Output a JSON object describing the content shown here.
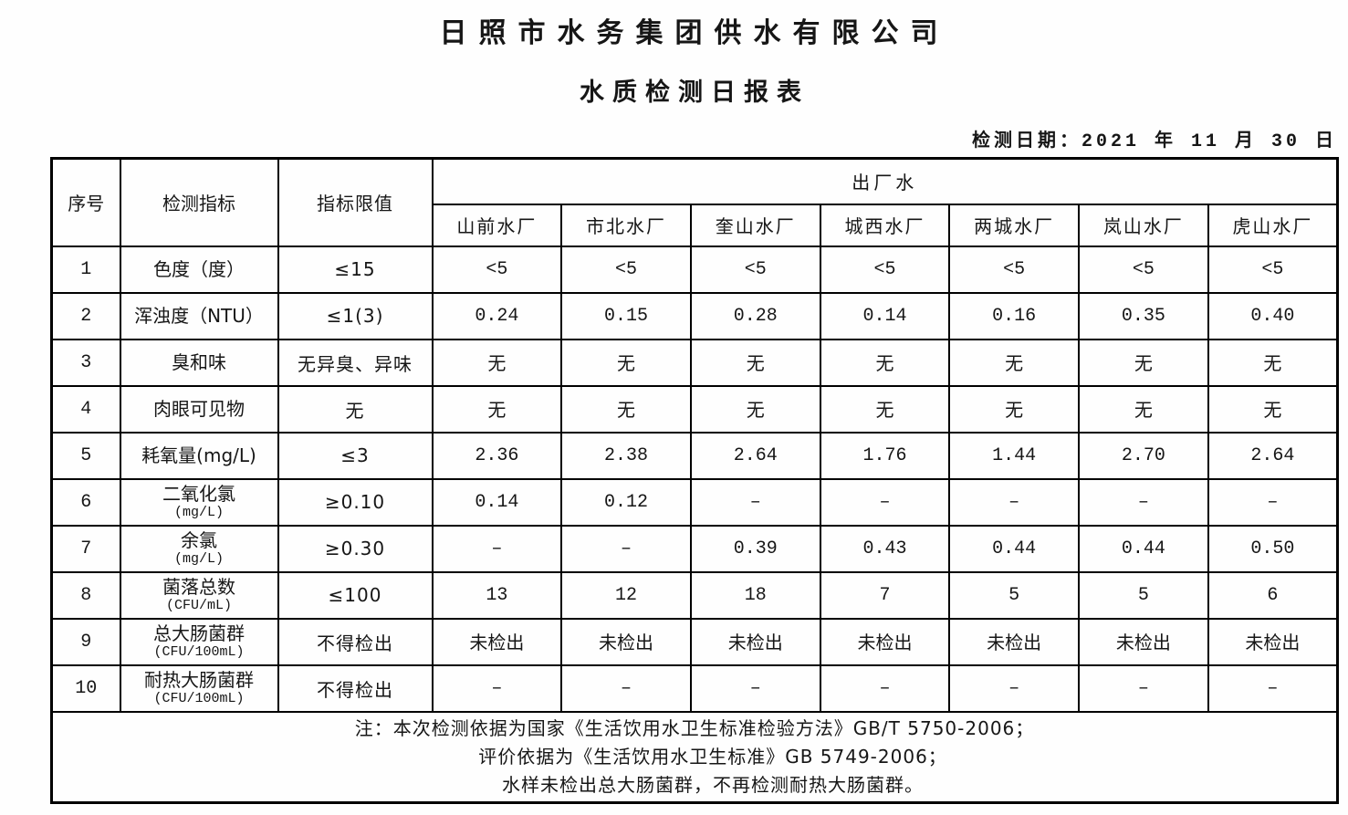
{
  "page": {
    "title": "日照市水务集团供水有限公司",
    "subtitle": "水质检测日报表",
    "date_label": "检测日期：",
    "date_value": "2021 年 11 月 30 日"
  },
  "table": {
    "header": {
      "col_no": "序号",
      "col_indicator": "检测指标",
      "col_limit": "指标限值",
      "group": "出厂水",
      "plants": [
        "山前水厂",
        "市北水厂",
        "奎山水厂",
        "城西水厂",
        "两城水厂",
        "岚山水厂",
        "虎山水厂"
      ]
    },
    "rows": [
      {
        "no": "1",
        "indicator": "色度（度）",
        "unit": "",
        "limit": "≤15",
        "values": [
          "<5",
          "<5",
          "<5",
          "<5",
          "<5",
          "<5",
          "<5"
        ]
      },
      {
        "no": "2",
        "indicator": "浑浊度（NTU）",
        "unit": "",
        "limit": "≤1(3)",
        "values": [
          "0.24",
          "0.15",
          "0.28",
          "0.14",
          "0.16",
          "0.35",
          "0.40"
        ]
      },
      {
        "no": "3",
        "indicator": "臭和味",
        "unit": "",
        "limit": "无异臭、异味",
        "values": [
          "无",
          "无",
          "无",
          "无",
          "无",
          "无",
          "无"
        ]
      },
      {
        "no": "4",
        "indicator": "肉眼可见物",
        "unit": "",
        "limit": "无",
        "values": [
          "无",
          "无",
          "无",
          "无",
          "无",
          "无",
          "无"
        ]
      },
      {
        "no": "5",
        "indicator": "耗氧量(mg/L)",
        "unit": "",
        "limit": "≤3",
        "values": [
          "2.36",
          "2.38",
          "2.64",
          "1.76",
          "1.44",
          "2.70",
          "2.64"
        ]
      },
      {
        "no": "6",
        "indicator": "二氧化氯",
        "unit": "(mg/L)",
        "limit": "≥0.10",
        "values": [
          "0.14",
          "0.12",
          "–",
          "–",
          "–",
          "–",
          "–"
        ]
      },
      {
        "no": "7",
        "indicator": "余氯",
        "unit": "(mg/L)",
        "limit": "≥0.30",
        "values": [
          "–",
          "–",
          "0.39",
          "0.43",
          "0.44",
          "0.44",
          "0.50"
        ]
      },
      {
        "no": "8",
        "indicator": "菌落总数",
        "unit": "(CFU/mL)",
        "limit": "≤100",
        "values": [
          "13",
          "12",
          "18",
          "7",
          "5",
          "5",
          "6"
        ]
      },
      {
        "no": "9",
        "indicator": "总大肠菌群",
        "unit": "(CFU/100mL)",
        "limit": "不得检出",
        "values": [
          "未检出",
          "未检出",
          "未检出",
          "未检出",
          "未检出",
          "未检出",
          "未检出"
        ]
      },
      {
        "no": "10",
        "indicator": "耐热大肠菌群",
        "unit": "(CFU/100mL)",
        "limit": "不得检出",
        "values": [
          "–",
          "–",
          "–",
          "–",
          "–",
          "–",
          "–"
        ]
      }
    ],
    "notes": {
      "prefix": "注：",
      "lines": [
        "本次检测依据为国家《生活饮用水卫生标准检验方法》GB/T 5750-2006；",
        "评价依据为《生活饮用水卫生标准》GB 5749-2006；",
        "水样未检出总大肠菌群，不再检测耐热大肠菌群。"
      ]
    }
  }
}
